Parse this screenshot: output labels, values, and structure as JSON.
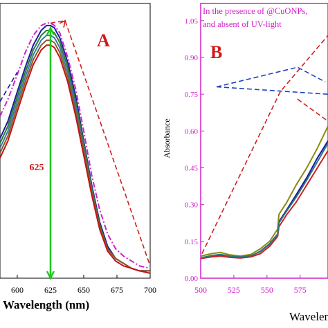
{
  "chart_data": [
    {
      "type": "line",
      "panel_label": "A",
      "title": "",
      "xlabel": "Wavelength (nm)",
      "ylabel": "",
      "x_ticks": [
        600,
        625,
        650,
        675,
        700
      ],
      "xlim": [
        587,
        700
      ],
      "ylim": [
        0,
        1.12
      ],
      "annotation": "625",
      "annotation_x": 625,
      "series": [
        {
          "color": "#1a1aa0",
          "x": [
            587,
            593,
            600,
            606,
            612,
            618,
            622,
            625,
            628,
            632,
            638,
            644,
            650,
            656,
            662,
            668,
            674,
            680,
            686,
            692,
            700
          ],
          "y": [
            0.57,
            0.64,
            0.76,
            0.86,
            0.95,
            1.01,
            1.03,
            1.03,
            1.02,
            0.98,
            0.88,
            0.74,
            0.56,
            0.38,
            0.23,
            0.13,
            0.08,
            0.06,
            0.04,
            0.03,
            0.03
          ]
        },
        {
          "color": "#2a7a2a",
          "x": [
            587,
            593,
            600,
            606,
            612,
            618,
            622,
            625,
            628,
            632,
            638,
            644,
            650,
            656,
            662,
            668,
            674,
            680,
            686,
            692,
            700
          ],
          "y": [
            0.55,
            0.62,
            0.74,
            0.84,
            0.93,
            0.99,
            1.01,
            1.01,
            1.0,
            0.96,
            0.86,
            0.72,
            0.55,
            0.37,
            0.22,
            0.12,
            0.08,
            0.06,
            0.04,
            0.03,
            0.03
          ]
        },
        {
          "color": "#3a7aa8",
          "x": [
            587,
            593,
            600,
            606,
            612,
            618,
            622,
            625,
            628,
            632,
            638,
            644,
            650,
            656,
            662,
            668,
            674,
            680,
            686,
            692,
            700
          ],
          "y": [
            0.53,
            0.6,
            0.72,
            0.82,
            0.91,
            0.97,
            0.99,
            0.99,
            0.98,
            0.94,
            0.84,
            0.7,
            0.53,
            0.36,
            0.21,
            0.12,
            0.08,
            0.06,
            0.04,
            0.03,
            0.03
          ]
        },
        {
          "color": "#8a5a2a",
          "x": [
            587,
            593,
            600,
            606,
            612,
            618,
            622,
            625,
            628,
            632,
            638,
            644,
            650,
            656,
            662,
            668,
            674,
            680,
            686,
            692,
            700
          ],
          "y": [
            0.51,
            0.58,
            0.7,
            0.8,
            0.89,
            0.95,
            0.97,
            0.97,
            0.96,
            0.92,
            0.82,
            0.68,
            0.52,
            0.35,
            0.21,
            0.12,
            0.08,
            0.06,
            0.04,
            0.03,
            0.03
          ]
        },
        {
          "color": "#c41414",
          "x": [
            587,
            593,
            600,
            606,
            612,
            618,
            622,
            625,
            628,
            632,
            638,
            644,
            650,
            656,
            662,
            668,
            674,
            680,
            686,
            692,
            700
          ],
          "y": [
            0.49,
            0.56,
            0.68,
            0.78,
            0.87,
            0.93,
            0.95,
            0.95,
            0.94,
            0.9,
            0.8,
            0.66,
            0.5,
            0.34,
            0.2,
            0.11,
            0.07,
            0.05,
            0.04,
            0.03,
            0.02
          ]
        },
        {
          "color": "#d020c8",
          "dash": "dashdot",
          "x": [
            587,
            593,
            600,
            606,
            612,
            618,
            622,
            625,
            628,
            632,
            638,
            644,
            650,
            656,
            662,
            668,
            674,
            680,
            686,
            692,
            700
          ],
          "y": [
            0.66,
            0.73,
            0.83,
            0.92,
            0.99,
            1.03,
            1.04,
            1.04,
            1.03,
            1.0,
            0.9,
            0.77,
            0.6,
            0.42,
            0.28,
            0.18,
            0.12,
            0.09,
            0.07,
            0.05,
            0.04
          ]
        }
      ],
      "annotation_lines": [
        {
          "color": "#1a1aa0",
          "x": [
            587,
            600
          ],
          "y": [
            0.72,
            0.84
          ]
        },
        {
          "color": "#d02020",
          "x": [
            625,
            636,
            700
          ],
          "y": [
            1.04,
            1.05,
            0.05
          ]
        }
      ]
    },
    {
      "type": "line",
      "panel_label": "B",
      "title": "",
      "xlabel": "Wavelen",
      "ylabel": "Absorbance",
      "x_ticks": [
        500,
        525,
        550,
        575
      ],
      "y_ticks": [
        "0.00",
        "0.15",
        "0.30",
        "0.45",
        "0.60",
        "0.75",
        "0.90",
        "1.05"
      ],
      "xlim": [
        500,
        596
      ],
      "ylim": [
        0,
        1.12
      ],
      "legend_text": [
        "In the presence of @CuONPs,",
        "and absent of UV-light"
      ],
      "series": [
        {
          "color": "#1a1aa0",
          "x": [
            500,
            508,
            515,
            522,
            530,
            538,
            545,
            552,
            558,
            559,
            565,
            572,
            580,
            588,
            596
          ],
          "y": [
            0.08,
            0.09,
            0.095,
            0.087,
            0.085,
            0.09,
            0.11,
            0.14,
            0.18,
            0.23,
            0.28,
            0.34,
            0.41,
            0.49,
            0.56
          ]
        },
        {
          "color": "#8a8a10",
          "x": [
            500,
            508,
            515,
            522,
            530,
            538,
            545,
            552,
            558,
            559,
            565,
            572,
            580,
            588,
            596
          ],
          "y": [
            0.09,
            0.1,
            0.105,
            0.095,
            0.09,
            0.097,
            0.12,
            0.15,
            0.2,
            0.26,
            0.31,
            0.38,
            0.45,
            0.53,
            0.62
          ]
        },
        {
          "color": "#d02020",
          "x": [
            500,
            508,
            515,
            522,
            530,
            538,
            545,
            552,
            558,
            559,
            565,
            572,
            580,
            588,
            596
          ],
          "y": [
            0.08,
            0.087,
            0.09,
            0.085,
            0.082,
            0.087,
            0.1,
            0.13,
            0.17,
            0.21,
            0.26,
            0.31,
            0.38,
            0.45,
            0.52
          ]
        },
        {
          "color": "#2a7a7a",
          "x": [
            500,
            508,
            515,
            522,
            530,
            538,
            545,
            552,
            558,
            559,
            565,
            572,
            580,
            588,
            596
          ],
          "y": [
            0.083,
            0.092,
            0.097,
            0.09,
            0.087,
            0.092,
            0.108,
            0.138,
            0.178,
            0.225,
            0.275,
            0.33,
            0.4,
            0.475,
            0.55
          ]
        }
      ],
      "annotation_lines": [
        {
          "color": "#2040c0",
          "x": [
            512,
            573,
            594
          ],
          "y": [
            0.78,
            0.86,
            0.8
          ]
        },
        {
          "color": "#2040c0",
          "x": [
            512,
            596
          ],
          "y": [
            0.78,
            0.75
          ]
        },
        {
          "color": "#d02020",
          "x": [
            501,
            560,
            596
          ],
          "y": [
            0.1,
            0.76,
            0.99
          ]
        },
        {
          "color": "#d02020",
          "x": [
            573,
            596
          ],
          "y": [
            0.73,
            0.64
          ]
        }
      ]
    }
  ]
}
